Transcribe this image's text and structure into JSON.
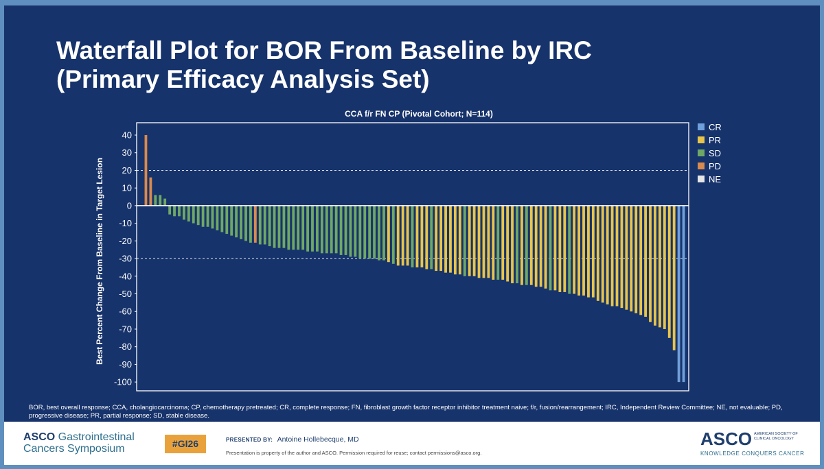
{
  "slide": {
    "title_line1": "Waterfall Plot for BOR From Baseline by IRC",
    "title_line2": "(Primary Efficacy Analysis Set)",
    "footnote": "BOR, best overall response; CCA, cholangiocarcinoma; CP, chemotherapy pretreated; CR, complete response; FN, fibroblast growth factor receptor inhibitor treatment naive; f/r, fusion/rearrangement; IRC, Independent Review Committee; NE, not evaluable; PD, progressive disease; PR, partial response; SD, stable disease."
  },
  "footer": {
    "org_line1_bold": "ASCO",
    "org_line1_rest": " Gastrointestinal",
    "org_line2": "Cancers Symposium",
    "hashtag": "#GI26",
    "presented_label": "PRESENTED BY:",
    "presenter": "Antoine Hollebecque, MD",
    "copyright": "Presentation is property of the author and ASCO. Permission required for reuse; contact permissions@asco.org.",
    "logo_text": "ASCO",
    "logo_sub": "AMERICAN SOCIETY OF CLINICAL ONCOLOGY",
    "logo_tagline": "KNOWLEDGE CONQUERS CANCER"
  },
  "colors": {
    "background": "#17336b",
    "CR": "#6fa0dc",
    "PR": "#e8c54a",
    "SD": "#6fa865",
    "PD": "#d98a4e",
    "NE": "#e6e6e6",
    "hashtag_bg": "#e9a23b"
  },
  "chart_data": {
    "type": "bar",
    "title": "CCA f/r FN CP (Pivotal Cohort; N=114)",
    "xlabel": "",
    "ylabel": "Best Percent Change From Baseline in Target Lesion",
    "ylim": [
      -105,
      47
    ],
    "yticks": [
      40,
      30,
      20,
      10,
      0,
      -10,
      -20,
      -30,
      -40,
      -50,
      -60,
      -70,
      -80,
      -90,
      -100
    ],
    "reference_lines": [
      20,
      -30
    ],
    "legend": [
      "CR",
      "PR",
      "SD",
      "PD",
      "NE"
    ],
    "legend_position": "right",
    "values": [
      40,
      16,
      6,
      6,
      4,
      -5,
      -6,
      -6,
      -8,
      -9,
      -10,
      -11,
      -12,
      -12,
      -13,
      -14,
      -15,
      -16,
      -17,
      -18,
      -19,
      -20,
      -21,
      -21,
      -22,
      -22,
      -23,
      -24,
      -24,
      -24,
      -25,
      -25,
      -25,
      -25,
      -26,
      -26,
      -26,
      -27,
      -27,
      -27,
      -27,
      -28,
      -28,
      -29,
      -29,
      -30,
      -30,
      -30,
      -30,
      -31,
      -31,
      -32,
      -33,
      -34,
      -34,
      -34,
      -35,
      -35,
      -35,
      -36,
      -36,
      -37,
      -37,
      -38,
      -38,
      -39,
      -39,
      -40,
      -40,
      -40,
      -41,
      -41,
      -41,
      -42,
      -42,
      -42,
      -43,
      -44,
      -44,
      -45,
      -45,
      -45,
      -46,
      -46,
      -47,
      -48,
      -48,
      -49,
      -49,
      -50,
      -50,
      -51,
      -51,
      -52,
      -52,
      -54,
      -55,
      -56,
      -57,
      -57,
      -58,
      -59,
      -60,
      -61,
      -62,
      -63,
      -66,
      -68,
      -69,
      -70,
      -75,
      -82,
      -100,
      -100
    ],
    "responses": [
      "PD",
      "PD",
      "SD",
      "SD",
      "SD",
      "SD",
      "SD",
      "SD",
      "SD",
      "SD",
      "SD",
      "SD",
      "SD",
      "SD",
      "SD",
      "SD",
      "SD",
      "SD",
      "SD",
      "SD",
      "SD",
      "SD",
      "SD",
      "PD",
      "SD",
      "SD",
      "SD",
      "SD",
      "SD",
      "SD",
      "SD",
      "SD",
      "SD",
      "SD",
      "SD",
      "SD",
      "SD",
      "SD",
      "SD",
      "SD",
      "SD",
      "SD",
      "SD",
      "SD",
      "SD",
      "SD",
      "SD",
      "SD",
      "SD",
      "SD",
      "SD",
      "PR",
      "SD",
      "PR",
      "PR",
      "PR",
      "SD",
      "PR",
      "PR",
      "PR",
      "SD",
      "PR",
      "PR",
      "PR",
      "PR",
      "PR",
      "PR",
      "SD",
      "PR",
      "PR",
      "PR",
      "PR",
      "PR",
      "PR",
      "SD",
      "PR",
      "PR",
      "PR",
      "SD",
      "PR",
      "SD",
      "PR",
      "PR",
      "PR",
      "PR",
      "SD",
      "PR",
      "PR",
      "PR",
      "SD",
      "PR",
      "PR",
      "PR",
      "PR",
      "PR",
      "PR",
      "PR",
      "PR",
      "PR",
      "PR",
      "PR",
      "PR",
      "PR",
      "PR",
      "PR",
      "PR",
      "PR",
      "PR",
      "PR",
      "PR",
      "PR",
      "PR",
      "CR",
      "CR"
    ]
  }
}
